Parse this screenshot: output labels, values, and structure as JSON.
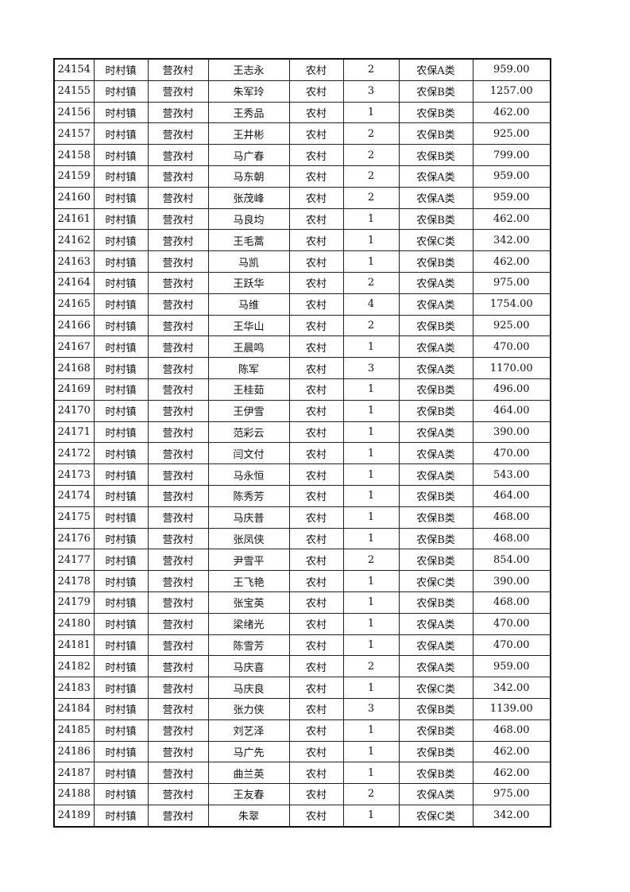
{
  "rows": [
    [
      "24154",
      "时村镇",
      "营孜村",
      "王志永",
      "农村",
      "2",
      "农保A类",
      "959.00"
    ],
    [
      "24155",
      "时村镇",
      "营孜村",
      "朱军玲",
      "农村",
      "3",
      "农保B类",
      "1257.00"
    ],
    [
      "24156",
      "时村镇",
      "营孜村",
      "王秀品",
      "农村",
      "1",
      "农保B类",
      "462.00"
    ],
    [
      "24157",
      "时村镇",
      "营孜村",
      "王井彬",
      "农村",
      "2",
      "农保B类",
      "925.00"
    ],
    [
      "24158",
      "时村镇",
      "营孜村",
      "马广春",
      "农村",
      "2",
      "农保B类",
      "799.00"
    ],
    [
      "24159",
      "时村镇",
      "营孜村",
      "马东朝",
      "农村",
      "2",
      "农保A类",
      "959.00"
    ],
    [
      "24160",
      "时村镇",
      "营孜村",
      "张茂峰",
      "农村",
      "2",
      "农保A类",
      "959.00"
    ],
    [
      "24161",
      "时村镇",
      "营孜村",
      "马良均",
      "农村",
      "1",
      "农保B类",
      "462.00"
    ],
    [
      "24162",
      "时村镇",
      "营孜村",
      "王毛蒿",
      "农村",
      "1",
      "农保C类",
      "342.00"
    ],
    [
      "24163",
      "时村镇",
      "营孜村",
      "马凯",
      "农村",
      "1",
      "农保B类",
      "462.00"
    ],
    [
      "24164",
      "时村镇",
      "营孜村",
      "王跃华",
      "农村",
      "2",
      "农保A类",
      "975.00"
    ],
    [
      "24165",
      "时村镇",
      "营孜村",
      "马维",
      "农村",
      "4",
      "农保A类",
      "1754.00"
    ],
    [
      "24166",
      "时村镇",
      "营孜村",
      "王华山",
      "农村",
      "2",
      "农保B类",
      "925.00"
    ],
    [
      "24167",
      "时村镇",
      "营孜村",
      "王晨鸣",
      "农村",
      "1",
      "农保A类",
      "470.00"
    ],
    [
      "24168",
      "时村镇",
      "营孜村",
      "陈军",
      "农村",
      "3",
      "农保A类",
      "1170.00"
    ],
    [
      "24169",
      "时村镇",
      "营孜村",
      "王桂茹",
      "农村",
      "1",
      "农保B类",
      "496.00"
    ],
    [
      "24170",
      "时村镇",
      "营孜村",
      "王伊雪",
      "农村",
      "1",
      "农保B类",
      "464.00"
    ],
    [
      "24171",
      "时村镇",
      "营孜村",
      "范彩云",
      "农村",
      "1",
      "农保A类",
      "390.00"
    ],
    [
      "24172",
      "时村镇",
      "营孜村",
      "闫文付",
      "农村",
      "1",
      "农保A类",
      "470.00"
    ],
    [
      "24173",
      "时村镇",
      "营孜村",
      "马永恒",
      "农村",
      "1",
      "农保A类",
      "543.00"
    ],
    [
      "24174",
      "时村镇",
      "营孜村",
      "陈秀芳",
      "农村",
      "1",
      "农保B类",
      "464.00"
    ],
    [
      "24175",
      "时村镇",
      "营孜村",
      "马庆普",
      "农村",
      "1",
      "农保B类",
      "468.00"
    ],
    [
      "24176",
      "时村镇",
      "营孜村",
      "张凤侠",
      "农村",
      "1",
      "农保B类",
      "468.00"
    ],
    [
      "24177",
      "时村镇",
      "营孜村",
      "尹雪平",
      "农村",
      "2",
      "农保B类",
      "854.00"
    ],
    [
      "24178",
      "时村镇",
      "营孜村",
      "王飞艳",
      "农村",
      "1",
      "农保C类",
      "390.00"
    ],
    [
      "24179",
      "时村镇",
      "营孜村",
      "张宝英",
      "农村",
      "1",
      "农保B类",
      "468.00"
    ],
    [
      "24180",
      "时村镇",
      "营孜村",
      "梁绪光",
      "农村",
      "1",
      "农保A类",
      "470.00"
    ],
    [
      "24181",
      "时村镇",
      "营孜村",
      "陈雪芳",
      "农村",
      "1",
      "农保A类",
      "470.00"
    ],
    [
      "24182",
      "时村镇",
      "营孜村",
      "马庆喜",
      "农村",
      "2",
      "农保A类",
      "959.00"
    ],
    [
      "24183",
      "时村镇",
      "营孜村",
      "马庆良",
      "农村",
      "1",
      "农保C类",
      "342.00"
    ],
    [
      "24184",
      "时村镇",
      "营孜村",
      "张力侠",
      "农村",
      "3",
      "农保B类",
      "1139.00"
    ],
    [
      "24185",
      "时村镇",
      "营孜村",
      "刘艺泽",
      "农村",
      "1",
      "农保B类",
      "468.00"
    ],
    [
      "24186",
      "时村镇",
      "营孜村",
      "马广先",
      "农村",
      "1",
      "农保B类",
      "462.00"
    ],
    [
      "24187",
      "时村镇",
      "营孜村",
      "曲兰英",
      "农村",
      "1",
      "农保B类",
      "462.00"
    ],
    [
      "24188",
      "时村镇",
      "营孜村",
      "王友春",
      "农村",
      "2",
      "农保A类",
      "975.00"
    ],
    [
      "24189",
      "时村镇",
      "营孜村",
      "朱翠",
      "农村",
      "1",
      "农保C类",
      "342.00"
    ]
  ]
}
